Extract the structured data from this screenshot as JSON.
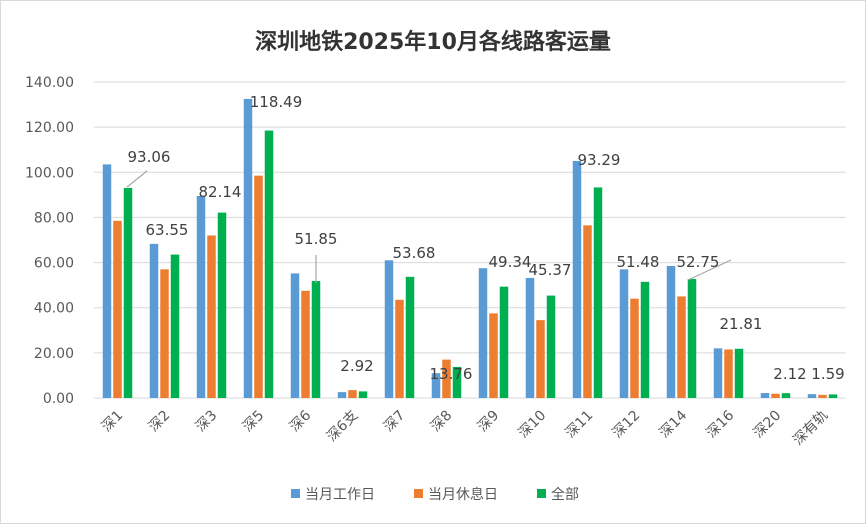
{
  "chart_data": {
    "type": "bar",
    "title": "深圳地铁2025年10月各线路客运量",
    "xlabel": "",
    "ylabel": "",
    "ylim": [
      0,
      140
    ],
    "yticks": [
      "0.00",
      "20.00",
      "40.00",
      "60.00",
      "80.00",
      "100.00",
      "120.00",
      "140.00"
    ],
    "grid": true,
    "legend_position": "bottom",
    "categories": [
      "深1",
      "深2",
      "深3",
      "深5",
      "深6",
      "深6支",
      "深7",
      "深8",
      "深9",
      "深10",
      "深11",
      "深12",
      "深14",
      "深16",
      "深20",
      "深有轨"
    ],
    "series": [
      {
        "name": "当月工作日",
        "color": "#5b9bd5",
        "values": [
          103.5,
          68.3,
          89.5,
          132.5,
          55.2,
          2.6,
          61.0,
          11.0,
          57.5,
          53.2,
          105.0,
          57.0,
          58.5,
          22.0,
          2.2,
          1.7
        ]
      },
      {
        "name": "当月休息日",
        "color": "#ed7d31",
        "values": [
          78.5,
          57.0,
          72.0,
          98.5,
          47.5,
          3.5,
          43.5,
          17.0,
          37.5,
          34.5,
          76.5,
          44.0,
          45.0,
          21.5,
          1.9,
          1.4
        ]
      },
      {
        "name": "全部",
        "color": "#00b050",
        "values": [
          93.06,
          63.55,
          82.14,
          118.49,
          51.85,
          2.92,
          53.68,
          13.76,
          49.34,
          45.37,
          93.29,
          51.48,
          52.75,
          21.81,
          2.12,
          1.59
        ],
        "data_labels": [
          "93.06",
          "63.55",
          "82.14",
          "118.49",
          "51.85",
          "2.92",
          "53.68",
          "13.76",
          "49.34",
          "45.37",
          "93.29",
          "51.48",
          "52.75",
          "21.81",
          "2.12",
          "1.59"
        ]
      }
    ]
  }
}
